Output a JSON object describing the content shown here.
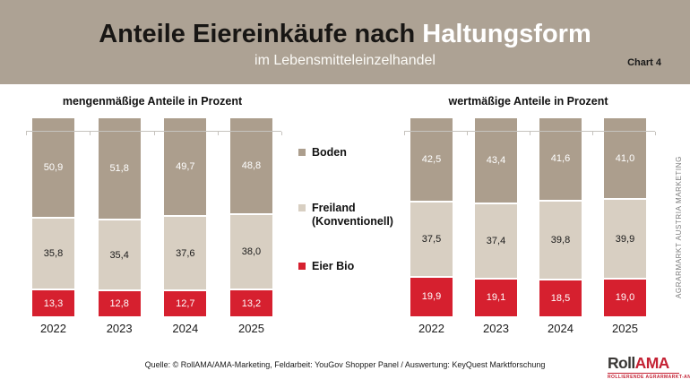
{
  "header": {
    "title_part1": "Anteile Eiereinkäufe nach ",
    "title_part2": "Haltungsform",
    "subtitle": "im Lebensmitteleinzelhandel",
    "chart_number": "Chart 4"
  },
  "legend": {
    "items": [
      {
        "label": "Boden",
        "color": "#ac9e8d"
      },
      {
        "label": "Freiland (Konventionell)",
        "color": "#d8cfc2"
      },
      {
        "label": "Eier Bio",
        "color": "#d6202f"
      }
    ]
  },
  "side_text": "AGRARMARKT AUSTRIA MARKETING",
  "footer": {
    "source": "Quelle: © RollAMA/AMA-Marketing, Feldarbeit: YouGov Shopper Panel / Auswertung: KeyQuest Marktforschung",
    "logo": {
      "part1": "Roll",
      "part2": "AMA",
      "tagline": "ROLLIERENDE AGRARMARKT-ANALYSE"
    }
  },
  "chart_data": [
    {
      "type": "bar",
      "stacked": true,
      "title": "mengenmäßige Anteile in Prozent",
      "categories": [
        "2022",
        "2023",
        "2024",
        "2025"
      ],
      "series": [
        {
          "name": "Eier Bio",
          "color": "#d6202f",
          "label_color": "#ffffff",
          "values": [
            13.3,
            12.8,
            12.7,
            13.2
          ],
          "labels": [
            "13,3",
            "12,8",
            "12,7",
            "13,2"
          ]
        },
        {
          "name": "Freiland (Konventionell)",
          "color": "#d8cfc2",
          "label_color": "#1a1a1a",
          "values": [
            35.8,
            35.4,
            37.6,
            38.0
          ],
          "labels": [
            "35,8",
            "35,4",
            "37,6",
            "38,0"
          ]
        },
        {
          "name": "Boden",
          "color": "#ac9e8d",
          "label_color": "#ffffff",
          "values": [
            50.9,
            51.8,
            49.7,
            48.8
          ],
          "labels": [
            "50,9",
            "51,8",
            "49,7",
            "48,8"
          ]
        }
      ],
      "ylim": [
        0,
        100
      ],
      "unit": "percent",
      "grid": false,
      "legend_position": "center-between-charts"
    },
    {
      "type": "bar",
      "stacked": true,
      "title": "wertmäßige Anteile in Prozent",
      "categories": [
        "2022",
        "2023",
        "2024",
        "2025"
      ],
      "series": [
        {
          "name": "Eier Bio",
          "color": "#d6202f",
          "label_color": "#ffffff",
          "values": [
            19.9,
            19.1,
            18.5,
            19.0
          ],
          "labels": [
            "19,9",
            "19,1",
            "18,5",
            "19,0"
          ]
        },
        {
          "name": "Freiland (Konventionell)",
          "color": "#d8cfc2",
          "label_color": "#1a1a1a",
          "values": [
            37.5,
            37.4,
            39.8,
            39.9
          ],
          "labels": [
            "37,5",
            "37,4",
            "39,8",
            "39,9"
          ]
        },
        {
          "name": "Boden",
          "color": "#ac9e8d",
          "label_color": "#ffffff",
          "values": [
            42.5,
            43.4,
            41.6,
            41.0
          ],
          "labels": [
            "42,5",
            "43,4",
            "41,6",
            "41,0"
          ]
        }
      ],
      "ylim": [
        0,
        100
      ],
      "unit": "percent",
      "grid": false,
      "legend_position": "center-between-charts"
    }
  ]
}
